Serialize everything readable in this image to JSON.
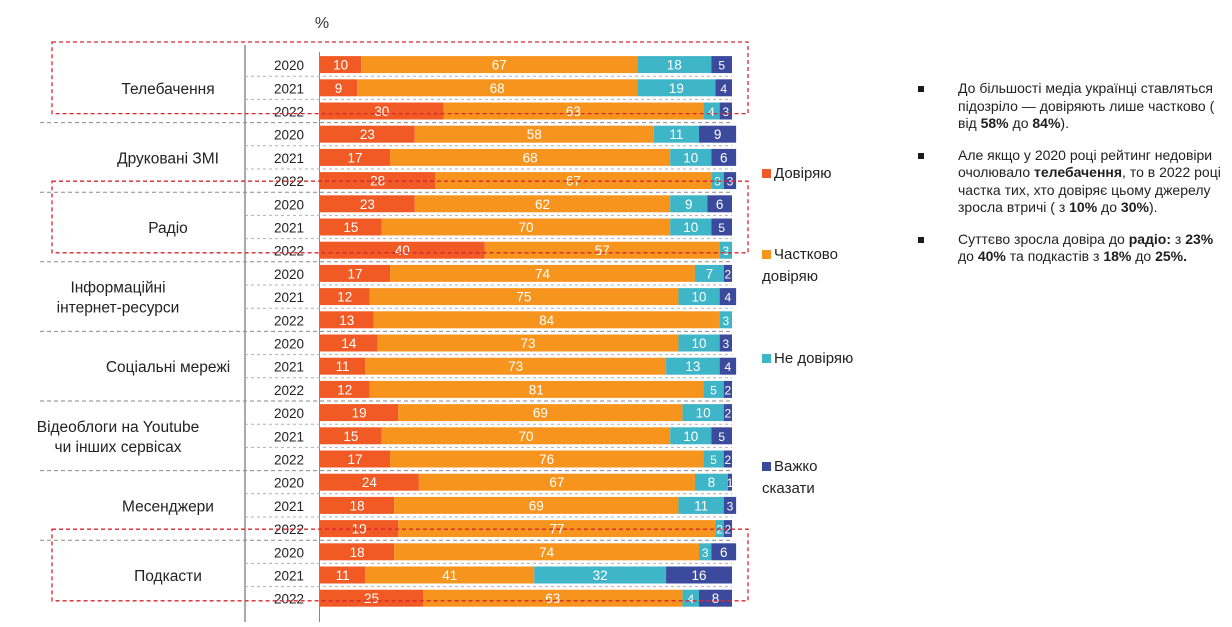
{
  "chart_data": {
    "type": "bar",
    "orientation": "horizontal",
    "stacked": true,
    "unit_label": "%",
    "xlim": [
      0,
      100
    ],
    "categories": [
      {
        "label": "Телебачення",
        "years": [
          "2020",
          "2021",
          "2022"
        ],
        "highlighted": true
      },
      {
        "label": "Друковані ЗМІ",
        "years": [
          "2020",
          "2021",
          "2022"
        ],
        "highlighted": false
      },
      {
        "label": "Радіо",
        "years": [
          "2020",
          "2021",
          "2022"
        ],
        "highlighted": true
      },
      {
        "label": "Інформаційні інтернет-ресурси",
        "years": [
          "2020",
          "2021",
          "2022"
        ],
        "highlighted": false
      },
      {
        "label": "Соціальні мережі",
        "years": [
          "2020",
          "2021",
          "2022"
        ],
        "highlighted": false
      },
      {
        "label": "Відеоблоги на Youtube чи інших сервісах",
        "years": [
          "2020",
          "2021",
          "2022"
        ],
        "highlighted": false
      },
      {
        "label": "Месенджери",
        "years": [
          "2020",
          "2021",
          "2022"
        ],
        "highlighted": false
      },
      {
        "label": "Подкасти",
        "years": [
          "2020",
          "2021",
          "2022"
        ],
        "highlighted": true
      }
    ],
    "series": [
      {
        "name": "Довіряю",
        "color": "#f15a24",
        "values": [
          [
            10,
            9,
            30
          ],
          [
            23,
            17,
            28
          ],
          [
            23,
            15,
            40
          ],
          [
            17,
            12,
            13
          ],
          [
            14,
            11,
            12
          ],
          [
            19,
            15,
            17
          ],
          [
            24,
            18,
            19
          ],
          [
            18,
            11,
            25
          ]
        ]
      },
      {
        "name": "Частково довіряю",
        "color": "#f7941d",
        "values": [
          [
            67,
            68,
            63
          ],
          [
            58,
            68,
            67
          ],
          [
            62,
            70,
            57
          ],
          [
            74,
            75,
            84
          ],
          [
            73,
            73,
            81
          ],
          [
            69,
            70,
            76
          ],
          [
            67,
            69,
            77
          ],
          [
            74,
            41,
            63
          ]
        ]
      },
      {
        "name": "Не довіряю",
        "color": "#3fb5c8",
        "values": [
          [
            18,
            19,
            4
          ],
          [
            11,
            10,
            3
          ],
          [
            9,
            10,
            3
          ],
          [
            7,
            10,
            3
          ],
          [
            10,
            13,
            5
          ],
          [
            10,
            10,
            5
          ],
          [
            8,
            11,
            2
          ],
          [
            3,
            32,
            4
          ]
        ]
      },
      {
        "name": "Важко сказати",
        "color": "#3b4a9c",
        "values": [
          [
            5,
            4,
            3
          ],
          [
            9,
            6,
            3
          ],
          [
            6,
            5,
            0
          ],
          [
            2,
            4,
            0
          ],
          [
            3,
            4,
            2
          ],
          [
            2,
            5,
            2
          ],
          [
            1,
            3,
            2
          ],
          [
            6,
            16,
            8
          ]
        ]
      }
    ]
  },
  "legend": [
    {
      "label": "Довіряю",
      "color": "#f15a24"
    },
    {
      "label": "Частково довіряю",
      "color": "#f7941d"
    },
    {
      "label": "Не довіряю",
      "color": "#3fb5c8"
    },
    {
      "label": "Важко сказати",
      "color": "#3b4a9c"
    }
  ],
  "notes": [
    {
      "parts": [
        {
          "text": "До більшості медіа українці ставляться підозріло — довіряють лише частково ( від ",
          "bold": false
        },
        {
          "text": "58%",
          "bold": true
        },
        {
          "text": " до ",
          "bold": false
        },
        {
          "text": "84%",
          "bold": true
        },
        {
          "text": ").",
          "bold": false
        }
      ]
    },
    {
      "parts": [
        {
          "text": "Але якщо у 2020 році рейтинг недовіри очолювало ",
          "bold": false
        },
        {
          "text": "телебачення",
          "bold": true
        },
        {
          "text": ", то в 2022 році частка тих, хто довіряє цьому джерелу зросла втричі ( з ",
          "bold": false
        },
        {
          "text": "10%",
          "bold": true
        },
        {
          "text": " до ",
          "bold": false
        },
        {
          "text": "30%",
          "bold": true
        },
        {
          "text": ").",
          "bold": false
        }
      ]
    },
    {
      "parts": [
        {
          "text": "Суттєво зросла довіра до ",
          "bold": false
        },
        {
          "text": "радіо:",
          "bold": true
        },
        {
          "text": " з ",
          "bold": false
        },
        {
          "text": "23%",
          "bold": true
        },
        {
          "text": " до ",
          "bold": false
        },
        {
          "text": "40%",
          "bold": true
        },
        {
          "text": " та подкастів  з ",
          "bold": false
        },
        {
          "text": "18%",
          "bold": true
        },
        {
          "text": " до ",
          "bold": false
        },
        {
          "text": "25%.",
          "bold": true
        }
      ]
    }
  ]
}
